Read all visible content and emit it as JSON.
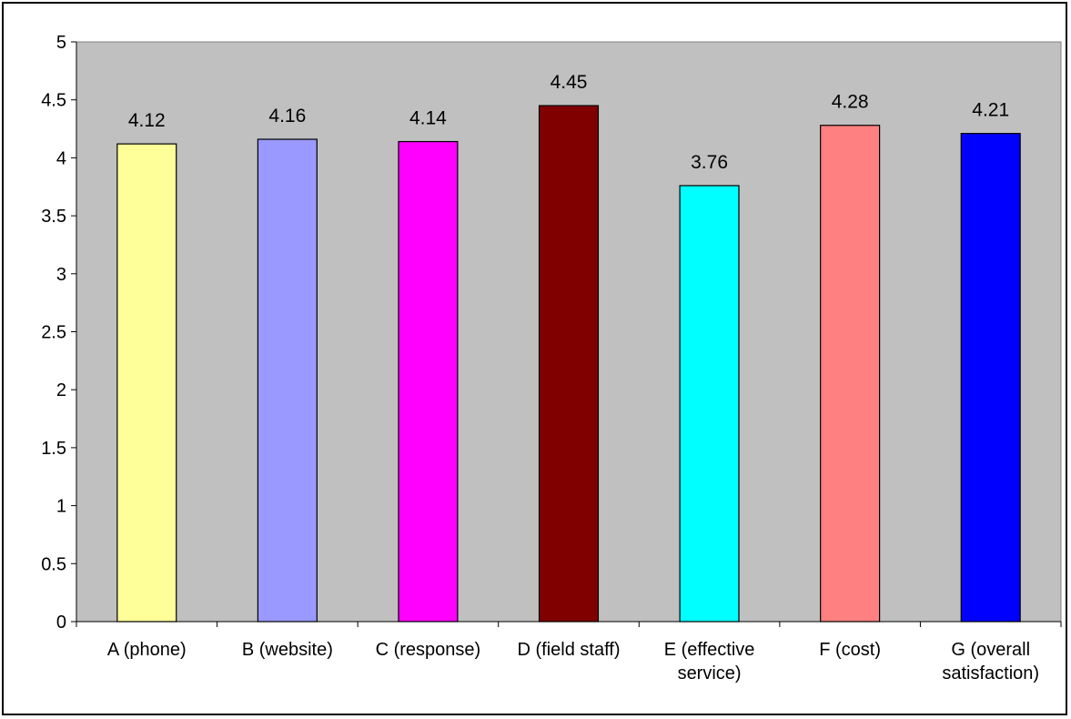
{
  "chart_data": {
    "type": "bar",
    "title": "",
    "xlabel": "",
    "ylabel": "",
    "ylim": [
      0,
      5
    ],
    "yticks": [
      0,
      0.5,
      1,
      1.5,
      2,
      2.5,
      3,
      3.5,
      4,
      4.5,
      5
    ],
    "ytick_labels": [
      "0",
      "0.5",
      "1",
      "1.5",
      "2",
      "2.5",
      "3",
      "3.5",
      "4",
      "4.5",
      "5"
    ],
    "grid": false,
    "legend": "none",
    "plot_background": "#c0c0c0",
    "categories": [
      [
        "A (phone)"
      ],
      [
        "B (website)"
      ],
      [
        "C (response)"
      ],
      [
        "D (field staff)"
      ],
      [
        "E (effective",
        "service)"
      ],
      [
        "F (cost)"
      ],
      [
        "G (overall",
        "satisfaction)"
      ]
    ],
    "values": [
      4.12,
      4.16,
      4.14,
      4.45,
      3.76,
      4.28,
      4.21
    ],
    "data_labels": [
      "4.12",
      "4.16",
      "4.14",
      "4.45",
      "3.76",
      "4.28",
      "4.21"
    ],
    "bar_colors": [
      "#ffff99",
      "#9999ff",
      "#ff00ff",
      "#800000",
      "#00ffff",
      "#ff8080",
      "#0000ff"
    ]
  }
}
